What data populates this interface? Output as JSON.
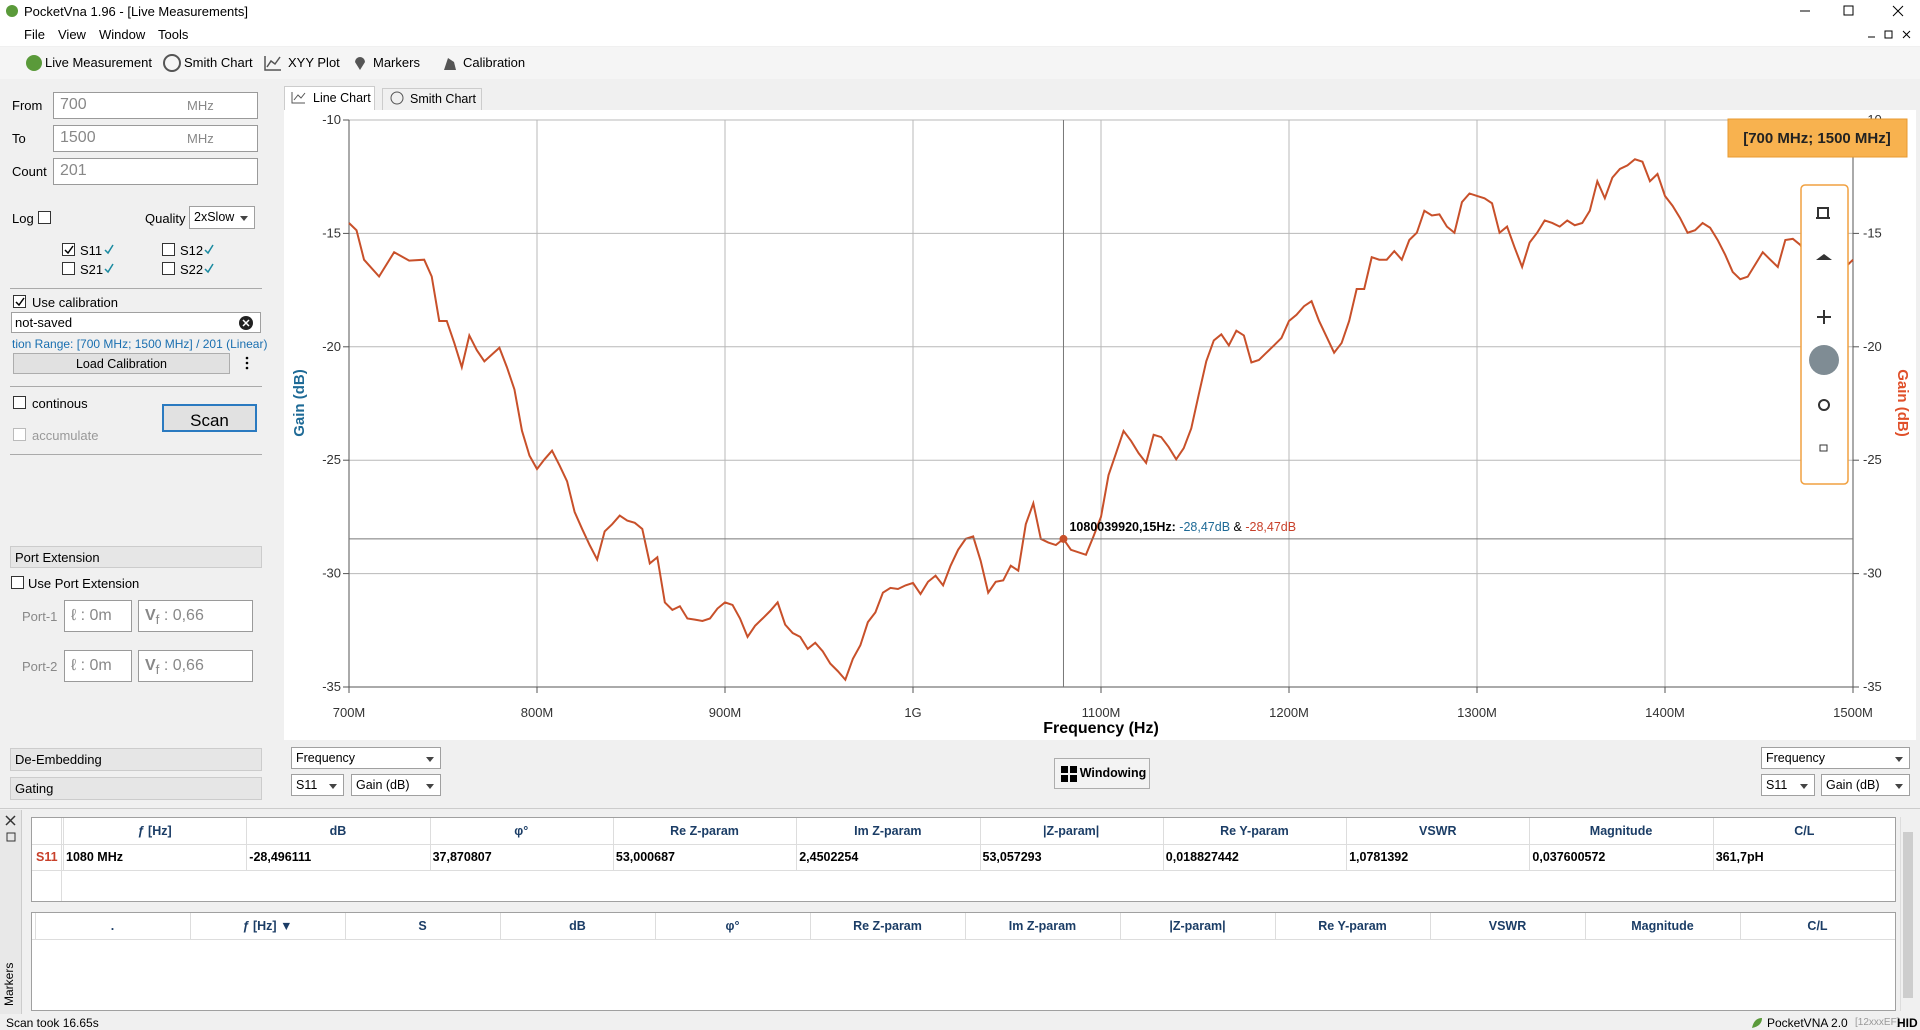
{
  "window": {
    "title": "PocketVna 1.96 - [Live Measurements]"
  },
  "menu": [
    "File",
    "View",
    "Window",
    "Tools"
  ],
  "toolbar": [
    "Live Measurement",
    "Smith Chart",
    "XYY Plot",
    "Markers",
    "Calibration"
  ],
  "sweep": {
    "from_label": "From",
    "from": "700",
    "from_unit": "MHz",
    "to_label": "To",
    "to": "1500",
    "to_unit": "MHz",
    "count_label": "Count",
    "count": "201",
    "log_label": "Log",
    "quality_label": "Quality",
    "quality": "2xSlow"
  },
  "params": [
    "S11",
    "S12",
    "S21",
    "S22"
  ],
  "calibration": {
    "use_label": "Use calibration",
    "file": "not-saved",
    "range": "tion Range: [700 MHz; 1500 MHz] / 201 (Linear)",
    "load_button": "Load Calibration"
  },
  "scan": {
    "continuous": "continous",
    "accumulate": "accumulate",
    "button": "Scan"
  },
  "port_extension": {
    "header": "Port Extension",
    "use_label": "Use Port Extension",
    "ports": [
      {
        "label": "Port-1",
        "length": "ℓ : 0m",
        "vf_symbol": "V",
        "vf_sub": "f",
        "vf": " : 0,66"
      },
      {
        "label": "Port-2",
        "length": "ℓ : 0m",
        "vf_symbol": "V",
        "vf_sub": "f",
        "vf": " : 0,66"
      }
    ]
  },
  "sections": [
    "De-Embedding",
    "Gating"
  ],
  "tabs": [
    "Line Chart",
    "Smith Chart"
  ],
  "chart_data": {
    "type": "line",
    "xlabel": "Frequency (Hz)",
    "ylabel": "Gain (dB)",
    "y2label": "Gain (dB)",
    "range_badge": "[700 MHz; 1500 MHz]",
    "xlim": [
      700,
      1500
    ],
    "xticks": [
      {
        "value": 700,
        "label": "700M"
      },
      {
        "value": 800,
        "label": "800M"
      },
      {
        "value": 900,
        "label": "900M"
      },
      {
        "value": 1000,
        "label": "1G"
      },
      {
        "value": 1100,
        "label": "1100M"
      },
      {
        "value": 1200,
        "label": "1200M"
      },
      {
        "value": 1300,
        "label": "1300M"
      },
      {
        "value": 1400,
        "label": "1400M"
      },
      {
        "value": 1500,
        "label": "1500M"
      }
    ],
    "ylim": [
      -35,
      -10
    ],
    "yticks": [
      -35,
      -30,
      -25,
      -20,
      -15,
      -10
    ],
    "y2lim": [
      -35,
      -10
    ],
    "y2ticks": [
      -35,
      -30,
      -25,
      -20,
      -15,
      -10
    ],
    "grid": true,
    "x": [
      700,
      704,
      708,
      716,
      724,
      732,
      740,
      744,
      748,
      752,
      756,
      760,
      764,
      768,
      772,
      780,
      784,
      788,
      792,
      796,
      800,
      804,
      808,
      812,
      816,
      820,
      824,
      828,
      832,
      836,
      840,
      844,
      848,
      852,
      856,
      860,
      864,
      868,
      872,
      876,
      880,
      884,
      888,
      892,
      896,
      900,
      904,
      908,
      912,
      916,
      920,
      924,
      928,
      932,
      936,
      940,
      944,
      948,
      952,
      956,
      960,
      964,
      968,
      972,
      976,
      980,
      984,
      988,
      992,
      996,
      1000,
      1004,
      1008,
      1012,
      1016,
      1020,
      1024,
      1028,
      1032,
      1036,
      1040,
      1044,
      1048,
      1052,
      1056,
      1060,
      1064,
      1068,
      1072,
      1076,
      1080,
      1084,
      1092,
      1096,
      1100,
      1104,
      1108,
      1112,
      1116,
      1120,
      1124,
      1128,
      1132,
      1136,
      1140,
      1144,
      1148,
      1152,
      1156,
      1160,
      1164,
      1168,
      1172,
      1176,
      1180,
      1184,
      1188,
      1192,
      1196,
      1200,
      1204,
      1208,
      1212,
      1216,
      1220,
      1224,
      1228,
      1232,
      1236,
      1240,
      1244,
      1248,
      1252,
      1256,
      1260,
      1264,
      1268,
      1272,
      1276,
      1280,
      1284,
      1288,
      1292,
      1296,
      1300,
      1304,
      1308,
      1312,
      1316,
      1320,
      1324,
      1328,
      1332,
      1336,
      1340,
      1344,
      1348,
      1352,
      1356,
      1360,
      1364,
      1368,
      1372,
      1376,
      1380,
      1384,
      1388,
      1392,
      1396,
      1400,
      1404,
      1408,
      1412,
      1416,
      1420,
      1424,
      1428,
      1432,
      1436,
      1440,
      1444,
      1448,
      1452,
      1456,
      1460,
      1464,
      1468,
      1472,
      1476,
      1480,
      1484,
      1488,
      1492,
      1496,
      1500
    ],
    "series": [
      {
        "color": "#c8502a",
        "values": [
          -14.54,
          -14.86,
          -16.16,
          -16.9,
          -15.83,
          -16.2,
          -16.16,
          -16.9,
          -18.86,
          -18.86,
          -19.83,
          -20.9,
          -19.5,
          -20.15,
          -20.64,
          -20.04,
          -20.9,
          -21.88,
          -23.7,
          -24.8,
          -25.39,
          -24.96,
          -24.58,
          -25.23,
          -25.93,
          -27.28,
          -28.03,
          -28.74,
          -29.38,
          -28.14,
          -27.82,
          -27.44,
          -27.66,
          -27.76,
          -28.03,
          -29.55,
          -29.28,
          -31.27,
          -31.6,
          -31.44,
          -31.98,
          -32.03,
          -32.09,
          -31.98,
          -31.54,
          -31.27,
          -31.38,
          -31.98,
          -32.79,
          -32.3,
          -31.98,
          -31.65,
          -31.27,
          -32.25,
          -32.62,
          -32.79,
          -33.32,
          -33.05,
          -33.43,
          -33.97,
          -34.3,
          -34.68,
          -33.76,
          -33.16,
          -32.14,
          -31.71,
          -30.84,
          -30.63,
          -30.68,
          -30.52,
          -30.41,
          -30.9,
          -30.36,
          -30.09,
          -30.52,
          -29.65,
          -28.95,
          -28.47,
          -28.36,
          -29.44,
          -30.84,
          -30.36,
          -30.3,
          -29.65,
          -29.87,
          -27.82,
          -26.9,
          -28.47,
          -28.63,
          -28.74,
          -28.47,
          -28.95,
          -29.17,
          -28.36,
          -27.5,
          -25.66,
          -24.69,
          -23.71,
          -24.15,
          -24.69,
          -25.12,
          -23.88,
          -23.98,
          -24.42,
          -24.96,
          -24.47,
          -23.6,
          -22.1,
          -20.64,
          -19.72,
          -19.45,
          -19.94,
          -19.29,
          -19.5,
          -20.69,
          -20.58,
          -20.26,
          -19.94,
          -19.61,
          -18.86,
          -18.59,
          -18.21,
          -17.99,
          -18.86,
          -19.56,
          -20.26,
          -19.83,
          -18.86,
          -17.45,
          -17.45,
          -16.05,
          -16.16,
          -16.16,
          -15.78,
          -16.16,
          -15.29,
          -14.97,
          -14.0,
          -14.21,
          -14.16,
          -14.7,
          -14.97,
          -13.62,
          -13.24,
          -13.35,
          -13.45,
          -13.67,
          -14.97,
          -14.7,
          -15.62,
          -16.48,
          -15.4,
          -14.97,
          -14.43,
          -14.54,
          -14.7,
          -14.43,
          -14.64,
          -14.54,
          -14.0,
          -12.7,
          -13.45,
          -12.54,
          -12.16,
          -12.0,
          -11.73,
          -11.84,
          -12.7,
          -12.38,
          -13.35,
          -13.78,
          -14.32,
          -14.97,
          -14.86,
          -14.54,
          -14.75,
          -15.29,
          -15.94,
          -16.7,
          -17.02,
          -16.91,
          -16.37,
          -15.83,
          -16.16,
          -16.48,
          -15.29,
          -15.24,
          -15.51,
          -16.05,
          -16.32,
          -16.59,
          -16.86,
          -17.24,
          -16.48,
          -16.16
        ]
      }
    ],
    "marker": {
      "x": 1080.03992015,
      "y": -28.47,
      "label": "1080039920,15Hz:",
      "value_a": "-28,47dB",
      "joiner": "&",
      "value_b": "-28,47dB"
    }
  },
  "chart_controls": {
    "left": [
      "Frequency",
      "S11",
      "Gain (dB)"
    ],
    "right": [
      "Frequency",
      "S11",
      "Gain (dB)"
    ],
    "windowing": "Windowing"
  },
  "table1": {
    "headers": [
      "ƒ [Hz]",
      "dB",
      "φ°",
      "Re Z-param",
      "Im Z-param",
      "|Z-param|",
      "Re Y-param",
      "VSWR",
      "Magnitude",
      "C/L"
    ],
    "row_label": "S11",
    "row": [
      "1080 MHz",
      "-28,496111",
      "37,870807",
      "53,000687",
      "2,4502254",
      "53,057293",
      "0,018827442",
      "1,0781392",
      "0,037600572",
      "361,7pH"
    ]
  },
  "table2": {
    "headers": [
      ".",
      "ƒ [Hz] ▼",
      "S",
      "dB",
      "φ°",
      "Re Z-param",
      "Im Z-param",
      "|Z-param|",
      "Re Y-param",
      "VSWR",
      "Magnitude",
      "C/L"
    ]
  },
  "side_tab": "Markers",
  "status": {
    "text": "Scan took 16.65s",
    "device": "PocketVNA 2.0",
    "serial": "[12xxxEF]",
    "mode": "HID"
  }
}
